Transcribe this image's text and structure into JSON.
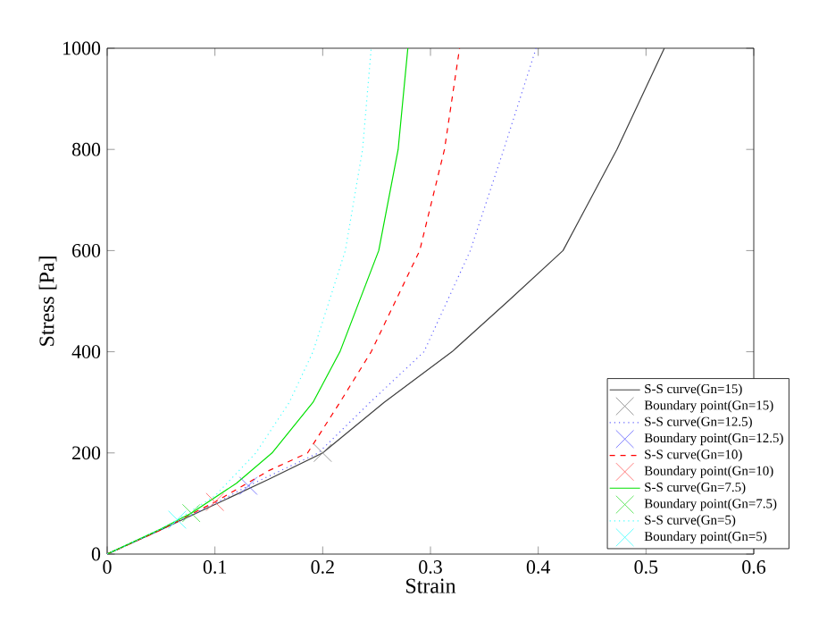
{
  "chart_data": {
    "type": "line",
    "xlabel": "Strain",
    "ylabel": "Stress [Pa]",
    "xlim": [
      0,
      0.6
    ],
    "ylim": [
      0,
      1000
    ],
    "xticks": [
      0,
      0.1,
      0.2,
      0.3,
      0.4,
      0.5,
      0.6
    ],
    "yticks": [
      0,
      200,
      400,
      600,
      800,
      1000
    ],
    "grid": false,
    "legend": "bottom right",
    "series": [
      {
        "name": "S-S curve(Gn=15)",
        "color": "#404040",
        "line_style": "solid",
        "x": [
          0,
          0.05,
          0.1,
          0.15,
          0.2,
          0.257,
          0.32,
          0.372,
          0.423,
          0.473,
          0.517
        ],
        "values": [
          0,
          48,
          98,
          148,
          200,
          300,
          400,
          500,
          600,
          800,
          1000
        ]
      },
      {
        "name": "Boundary point(Gn=15)",
        "type": "scatter",
        "marker": "cross",
        "color": "#808080",
        "x": [
          0.2
        ],
        "values": [
          200
        ]
      },
      {
        "name": "S-S curve(Gn=12.5)",
        "color": "#6060ff",
        "line_style": "dotted",
        "x": [
          0,
          0.05,
          0.1,
          0.131,
          0.196,
          0.244,
          0.294,
          0.337,
          0.368,
          0.398
        ],
        "values": [
          0,
          48,
          100,
          135,
          200,
          300,
          400,
          600,
          800,
          1000
        ]
      },
      {
        "name": "Boundary point(Gn=12.5)",
        "type": "scatter",
        "marker": "cross",
        "color": "#6060ff",
        "x": [
          0.131
        ],
        "values": [
          135
        ]
      },
      {
        "name": "S-S curve(Gn=10)",
        "color": "#ff0000",
        "line_style": "dashed",
        "x": [
          0,
          0.05,
          0.1,
          0.15,
          0.186,
          0.216,
          0.245,
          0.29,
          0.313,
          0.327
        ],
        "values": [
          0,
          48,
          103,
          165,
          200,
          300,
          400,
          600,
          800,
          1000
        ]
      },
      {
        "name": "Boundary point(Gn=10)",
        "type": "scatter",
        "marker": "cross",
        "color": "#ff6060",
        "x": [
          0.1
        ],
        "values": [
          103
        ]
      },
      {
        "name": "S-S curve(Gn=7.5)",
        "color": "#00e000",
        "line_style": "solid",
        "x": [
          0,
          0.05,
          0.078,
          0.12,
          0.153,
          0.191,
          0.216,
          0.252,
          0.27,
          0.279
        ],
        "values": [
          0,
          50,
          81,
          140,
          200,
          300,
          400,
          600,
          800,
          1000
        ]
      },
      {
        "name": "Boundary point(Gn=7.5)",
        "type": "scatter",
        "marker": "cross",
        "color": "#40e040",
        "x": [
          0.078
        ],
        "values": [
          81
        ]
      },
      {
        "name": "S-S curve(Gn=5)",
        "color": "#40ffff",
        "line_style": "dotted",
        "x": [
          0,
          0.05,
          0.065,
          0.1,
          0.138,
          0.169,
          0.191,
          0.221,
          0.237,
          0.245
        ],
        "values": [
          0,
          50,
          68,
          115,
          200,
          300,
          400,
          600,
          800,
          1000
        ]
      },
      {
        "name": "Boundary point(Gn=5)",
        "type": "scatter",
        "marker": "cross",
        "color": "#40ffff",
        "x": [
          0.065
        ],
        "values": [
          68
        ]
      }
    ]
  }
}
